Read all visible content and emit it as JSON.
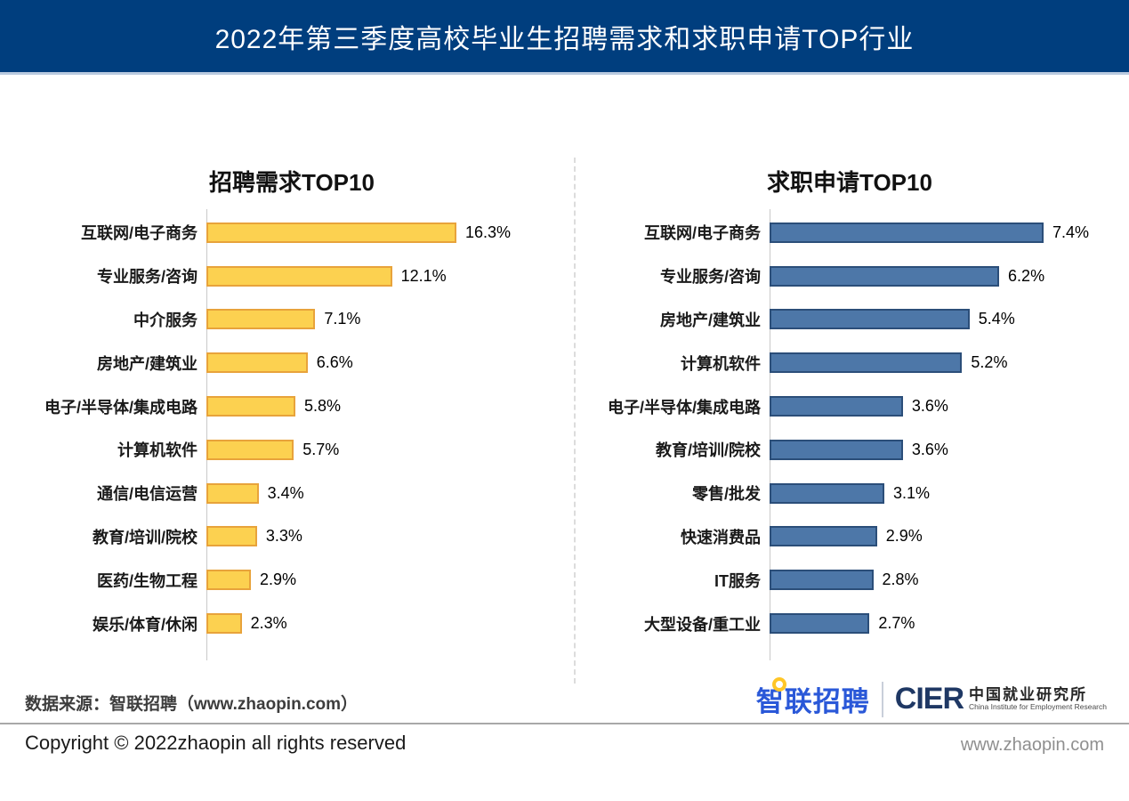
{
  "banner": {
    "title": "2022年第三季度高校毕业生招聘需求和求职申请TOP行业",
    "bg_color": "#003E7E"
  },
  "chart_data": [
    {
      "type": "bar",
      "orientation": "horizontal",
      "title": "招聘需求TOP10",
      "categories": [
        "互联网/电子商务",
        "专业服务/咨询",
        "中介服务",
        "房地产/建筑业",
        "电子/半导体/集成电路",
        "计算机软件",
        "通信/电信运营",
        "教育/培训/院校",
        "医药/生物工程",
        "娱乐/体育/休闲"
      ],
      "values": [
        16.3,
        12.1,
        7.1,
        6.6,
        5.8,
        5.7,
        3.4,
        3.3,
        2.9,
        2.3
      ],
      "value_labels": [
        "16.3%",
        "12.1%",
        "7.1%",
        "6.6%",
        "5.8%",
        "5.7%",
        "3.4%",
        "3.3%",
        "2.9%",
        "2.3%"
      ],
      "bar_color": "#FCD150",
      "bar_border_color": "#E8A33B",
      "xlabel": "",
      "ylabel": "",
      "xlim": [
        0,
        16.3
      ],
      "grid": false,
      "legend": false
    },
    {
      "type": "bar",
      "orientation": "horizontal",
      "title": "求职申请TOP10",
      "categories": [
        "互联网/电子商务",
        "专业服务/咨询",
        "房地产/建筑业",
        "计算机软件",
        "电子/半导体/集成电路",
        "教育/培训/院校",
        "零售/批发",
        "快速消费品",
        "IT服务",
        "大型设备/重工业"
      ],
      "values": [
        7.4,
        6.2,
        5.4,
        5.2,
        3.6,
        3.6,
        3.1,
        2.9,
        2.8,
        2.7
      ],
      "value_labels": [
        "7.4%",
        "6.2%",
        "5.4%",
        "5.2%",
        "3.6%",
        "3.6%",
        "3.1%",
        "2.9%",
        "2.8%",
        "2.7%"
      ],
      "bar_color": "#4D77A8",
      "bar_border_color": "#2B4E79",
      "xlabel": "",
      "ylabel": "",
      "xlim": [
        0,
        7.4
      ],
      "grid": false,
      "legend": false
    }
  ],
  "footer": {
    "source": "数据来源：智联招聘（www.zhaopin.com）",
    "copyright": "Copyright ©  2022zhaopin all rights reserved",
    "website": "www.zhaopin.com",
    "logos": {
      "zhaopin": "智联招聘",
      "cier_acronym": "CIER",
      "cier_cn": "中国就业研究所",
      "cier_en": "China Institute for Employment Research"
    }
  }
}
